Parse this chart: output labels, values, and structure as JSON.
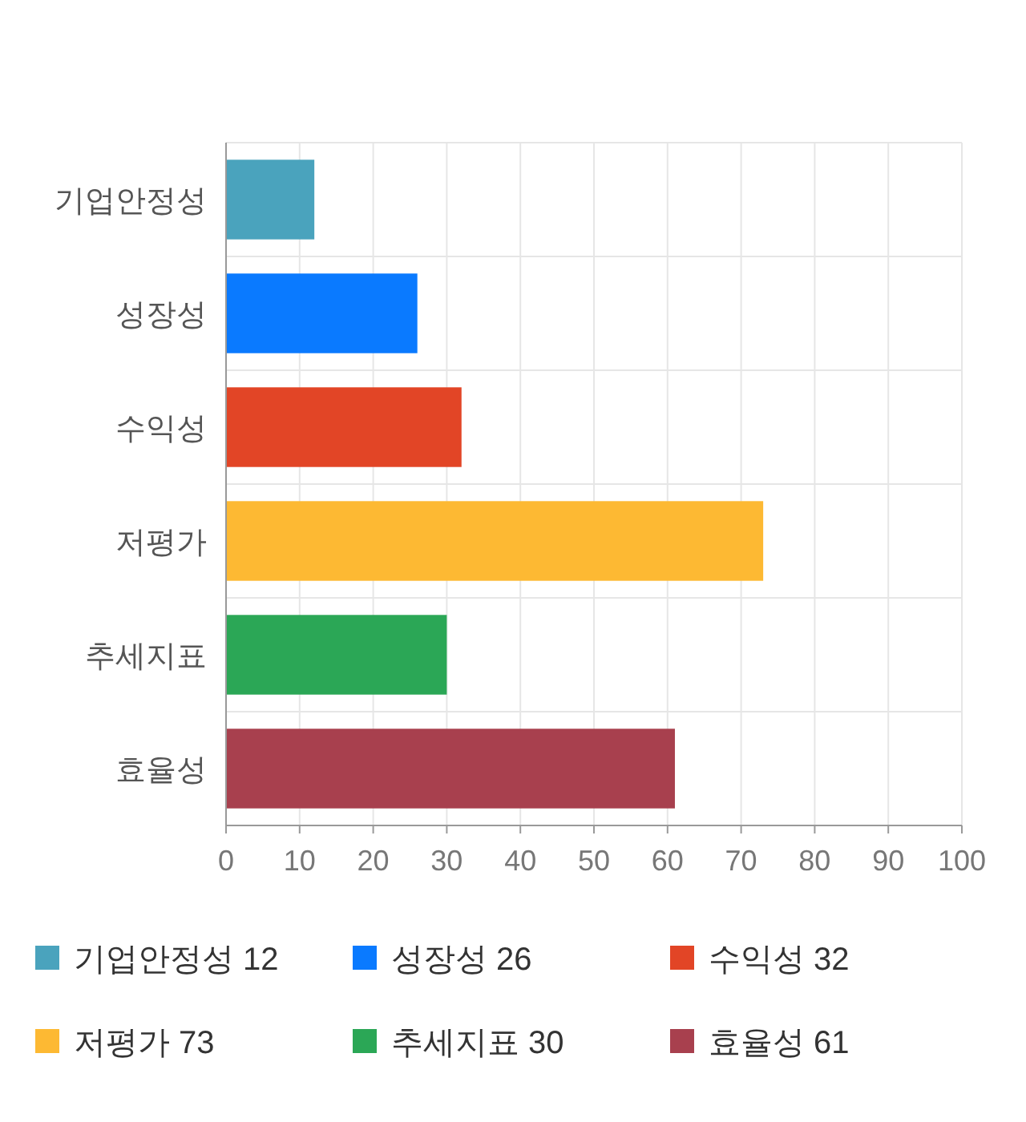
{
  "chart_data": {
    "type": "bar",
    "orientation": "horizontal",
    "categories": [
      "기업안정성",
      "성장성",
      "수익성",
      "저평가",
      "추세지표",
      "효율성"
    ],
    "series": [
      {
        "name": "기업안정성 12",
        "color": "#4aa3bd",
        "values": [
          12,
          null,
          null,
          null,
          null,
          null
        ]
      },
      {
        "name": "성장성 26",
        "color": "#0a7aff",
        "values": [
          null,
          26,
          null,
          null,
          null,
          null
        ]
      },
      {
        "name": "수익성 32",
        "color": "#e24526",
        "values": [
          null,
          null,
          32,
          null,
          null,
          null
        ]
      },
      {
        "name": "저평가 73",
        "color": "#fdb933",
        "values": [
          null,
          null,
          null,
          73,
          null,
          null
        ]
      },
      {
        "name": "추세지표 30",
        "color": "#2ba756",
        "values": [
          null,
          null,
          null,
          null,
          30,
          null
        ]
      },
      {
        "name": "효율성 61",
        "color": "#a8404e",
        "values": [
          null,
          null,
          null,
          null,
          null,
          61
        ]
      }
    ],
    "xlim": [
      0,
      100
    ],
    "xticks": [
      0,
      10,
      20,
      30,
      40,
      50,
      60,
      70,
      80,
      90,
      100
    ],
    "grid": true,
    "legend": "bottom"
  }
}
